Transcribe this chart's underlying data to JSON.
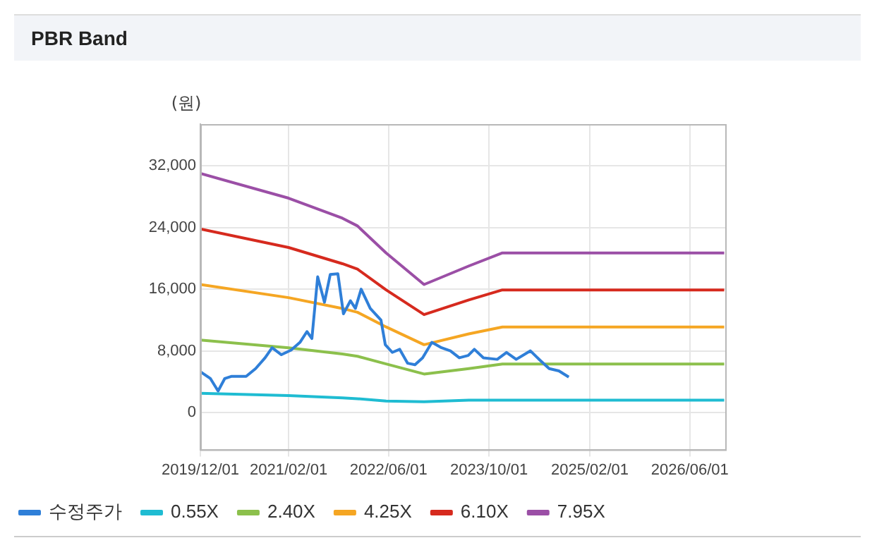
{
  "chart_data": {
    "type": "line",
    "title": "PBR Band",
    "ylabel": "(원)",
    "marker": "none",
    "grid": true,
    "legend": "bottom",
    "x": [
      "2019-12-01",
      "2021-02-01",
      "2021-10-20",
      "2022-01-01",
      "2022-05-20",
      "2022-11-20",
      "2023-06-25",
      "2023-12-05",
      "2026-11-15"
    ],
    "xlim": [
      "2019-12-01",
      "2026-11-20"
    ],
    "xticks": [
      {
        "value": "2019-12-01",
        "label": "2019/12/01"
      },
      {
        "value": "2021-02-01",
        "label": "2021/02/01"
      },
      {
        "value": "2022-06-01",
        "label": "2022/06/01"
      },
      {
        "value": "2023-10-01",
        "label": "2023/10/01"
      },
      {
        "value": "2025-02-01",
        "label": "2025/02/01"
      },
      {
        "value": "2026-06-01",
        "label": "2026/06/01"
      }
    ],
    "ylim": [
      -4800,
      37400
    ],
    "yticks": [
      {
        "value": 0,
        "label": "0"
      },
      {
        "value": 8000,
        "label": "8,000"
      },
      {
        "value": 16000,
        "label": "16,000"
      },
      {
        "value": 24000,
        "label": "24,000"
      },
      {
        "value": 32000,
        "label": "32,000"
      }
    ],
    "series": [
      {
        "name": "수정주가",
        "color": "#2f7fd8",
        "x": [
          "2019-12-01",
          "2020-01-19",
          "2020-02-25",
          "2020-03-28",
          "2020-05-01",
          "2020-07-10",
          "2020-08-25",
          "2020-10-10",
          "2020-11-13",
          "2020-12-28",
          "2021-02-13",
          "2021-03-28",
          "2021-05-01",
          "2021-05-25",
          "2021-06-22",
          "2021-07-25",
          "2021-08-22",
          "2021-09-28",
          "2021-10-25",
          "2021-11-28",
          "2021-12-22",
          "2022-01-19",
          "2022-03-04",
          "2022-04-25",
          "2022-05-16",
          "2022-06-19",
          "2022-07-25",
          "2022-09-01",
          "2022-10-07",
          "2022-11-13",
          "2022-12-28",
          "2023-02-13",
          "2023-03-28",
          "2023-05-10",
          "2023-06-22",
          "2023-07-22",
          "2023-09-04",
          "2023-11-10",
          "2023-12-25",
          "2024-02-10",
          "2024-04-19",
          "2024-06-04",
          "2024-07-19",
          "2024-09-04",
          "2024-10-22"
        ],
        "values": [
          5300,
          4400,
          2800,
          4400,
          4700,
          4700,
          5700,
          7100,
          8400,
          7500,
          8100,
          9100,
          10500,
          9600,
          17600,
          14300,
          17900,
          18000,
          12800,
          14500,
          13500,
          16000,
          13500,
          12000,
          8800,
          7800,
          8200,
          6400,
          6200,
          7100,
          9100,
          8400,
          8000,
          7100,
          7400,
          8200,
          7100,
          6900,
          7800,
          6900,
          8000,
          6800,
          5700,
          5400,
          4600
        ]
      },
      {
        "name": "0.55X",
        "color": "#1fbcd2",
        "values": [
          2500,
          2200,
          1900,
          1800,
          1500,
          1400,
          1600,
          1600,
          1600
        ]
      },
      {
        "name": "2.40X",
        "color": "#8cc04c",
        "values": [
          9400,
          8400,
          7600,
          7300,
          6300,
          5000,
          5700,
          6300,
          6300
        ]
      },
      {
        "name": "4.25X",
        "color": "#f5a623",
        "values": [
          16600,
          14900,
          13500,
          13000,
          11100,
          8800,
          10200,
          11100,
          11100
        ]
      },
      {
        "name": "6.10X",
        "color": "#d62a1e",
        "values": [
          23800,
          21400,
          19300,
          18600,
          15900,
          12700,
          14600,
          15900,
          15900
        ]
      },
      {
        "name": "7.95X",
        "color": "#9b4fa6",
        "values": [
          31000,
          27800,
          25200,
          24200,
          20700,
          16600,
          19000,
          20700,
          20700
        ]
      }
    ]
  }
}
